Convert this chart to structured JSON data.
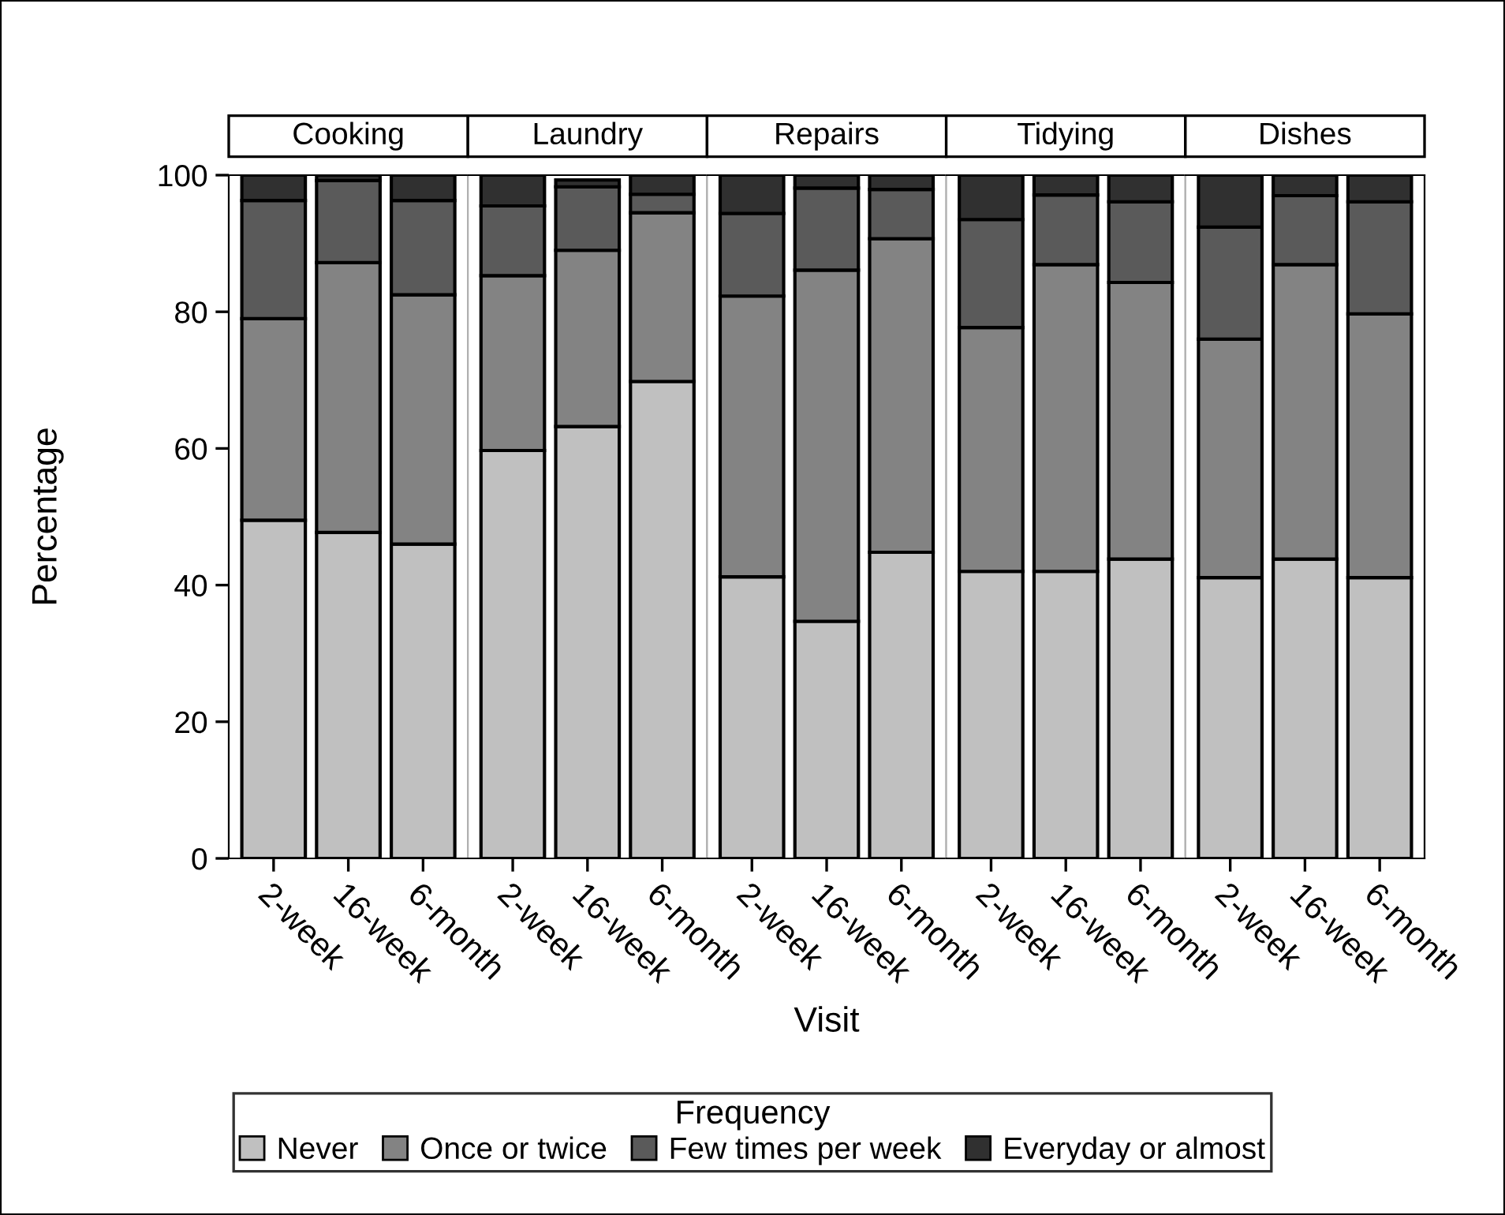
{
  "chart_data": [
    {
      "type": "bar",
      "stacked": true,
      "title": "Cooking",
      "ylabel": "Percentage",
      "legend": "bottom",
      "legend_title": "Frequency",
      "categories": [
        "2-week",
        "16-week",
        "6-month"
      ],
      "ylim": [
        0,
        100
      ],
      "yticks": [
        0,
        20,
        40,
        60,
        80,
        100
      ],
      "grid": false,
      "series": [
        {
          "name": "Never",
          "color": "#c0c0c0",
          "values": [
            49.5,
            47.7,
            46.0
          ]
        },
        {
          "name": "Once or twice",
          "color": "#838383",
          "values": [
            29.5,
            39.5,
            36.5
          ]
        },
        {
          "name": "Few times per week",
          "color": "#5a5a5a",
          "values": [
            17.3,
            12.0,
            13.8
          ]
        },
        {
          "name": "Everyday or almost",
          "color": "#303030",
          "values": [
            3.7,
            0.8,
            3.7
          ]
        }
      ]
    },
    {
      "type": "bar",
      "stacked": true,
      "title": "Laundry",
      "categories": [
        "2-week",
        "16-week",
        "6-month"
      ],
      "ylim": [
        0,
        100
      ],
      "grid": false,
      "tick_labels": "x",
      "series": [
        {
          "color": "#c0c0c0",
          "values": [
            59.7,
            63.2,
            69.8
          ]
        },
        {
          "color": "#838383",
          "values": [
            25.6,
            25.8,
            24.7
          ]
        },
        {
          "color": "#5a5a5a",
          "values": [
            10.2,
            9.3,
            2.7
          ]
        },
        {
          "color": "#303030",
          "values": [
            4.5,
            1.0,
            2.8
          ]
        }
      ]
    },
    {
      "type": "bar",
      "stacked": true,
      "title": "Repairs",
      "xlabel": "Visit",
      "categories": [
        "2-week",
        "16-week",
        "6-month"
      ],
      "ylim": [
        0,
        100
      ],
      "grid": false,
      "tick_labels": "x",
      "series": [
        {
          "color": "#c0c0c0",
          "values": [
            41.2,
            34.7,
            44.8
          ]
        },
        {
          "color": "#838383",
          "values": [
            41.1,
            51.4,
            45.9
          ]
        },
        {
          "color": "#5a5a5a",
          "values": [
            12.1,
            12.0,
            7.2
          ]
        },
        {
          "color": "#303030",
          "values": [
            5.6,
            1.9,
            2.1
          ]
        }
      ]
    },
    {
      "type": "bar",
      "stacked": true,
      "title": "Tidying",
      "categories": [
        "2-week",
        "16-week",
        "6-month"
      ],
      "ylim": [
        0,
        100
      ],
      "grid": false,
      "tick_labels": "x",
      "series": [
        {
          "color": "#c0c0c0",
          "values": [
            42.0,
            42.0,
            43.8
          ]
        },
        {
          "color": "#838383",
          "values": [
            35.7,
            44.9,
            40.5
          ]
        },
        {
          "color": "#5a5a5a",
          "values": [
            15.8,
            10.2,
            11.8
          ]
        },
        {
          "color": "#303030",
          "values": [
            6.5,
            2.9,
            3.9
          ]
        }
      ]
    },
    {
      "type": "bar",
      "stacked": true,
      "title": "Dishes",
      "categories": [
        "2-week",
        "16-week",
        "6-month"
      ],
      "ylim": [
        0,
        100
      ],
      "grid": false,
      "tick_labels": "x",
      "series": [
        {
          "color": "#c0c0c0",
          "values": [
            41.1,
            43.8,
            41.1
          ]
        },
        {
          "color": "#838383",
          "values": [
            34.9,
            43.1,
            38.6
          ]
        },
        {
          "color": "#5a5a5a",
          "values": [
            16.4,
            10.1,
            16.4
          ]
        },
        {
          "color": "#303030",
          "values": [
            7.6,
            3.0,
            3.9
          ]
        }
      ]
    }
  ]
}
